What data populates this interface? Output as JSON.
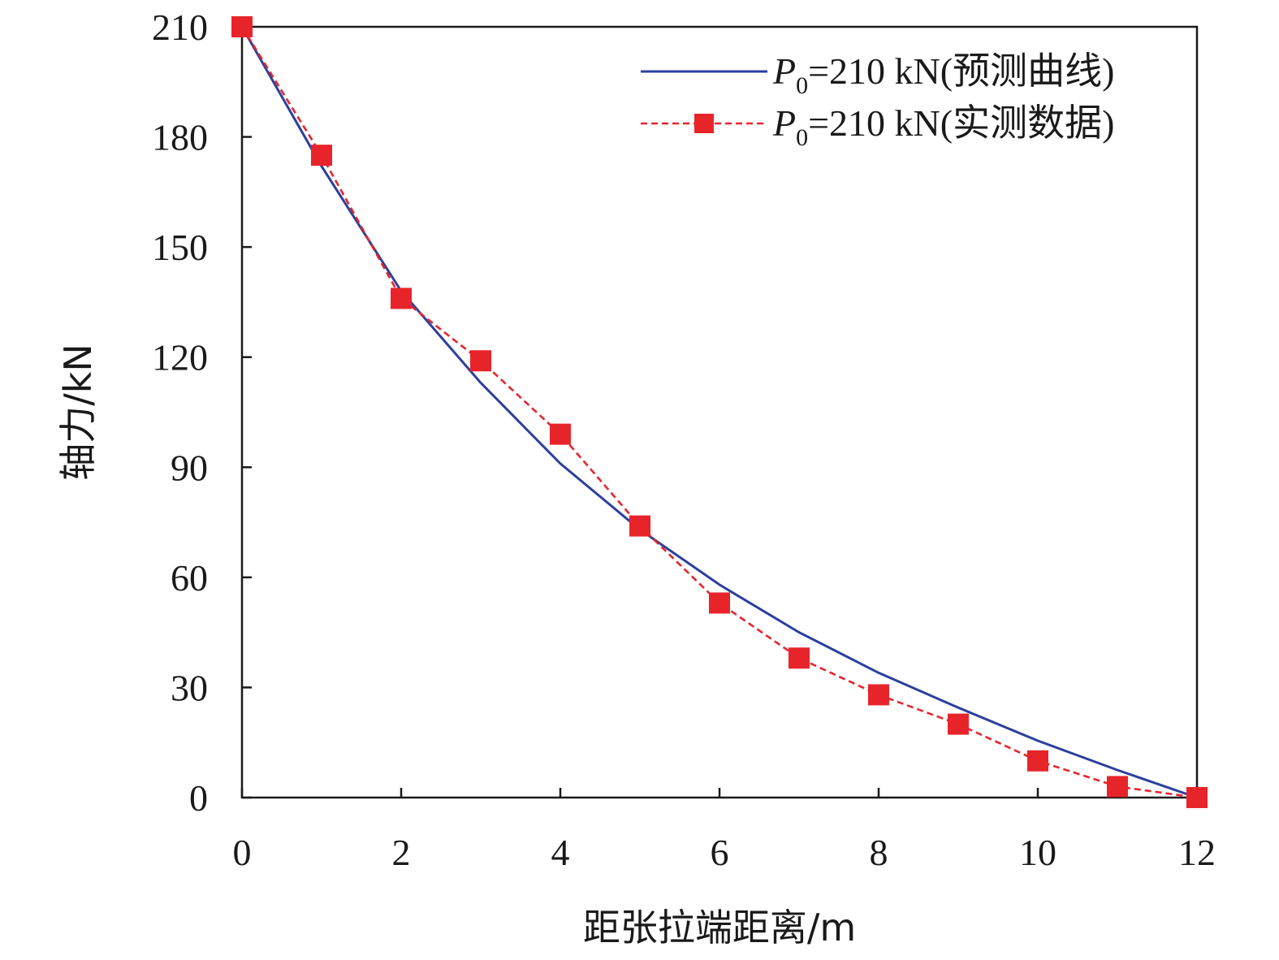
{
  "chart_data": {
    "type": "line",
    "xlabel": "距张拉端距离/m",
    "ylabel": "轴力/kN",
    "xlim": [
      0,
      12
    ],
    "ylim": [
      0,
      210
    ],
    "x_ticks": [
      "0",
      "2",
      "4",
      "6",
      "8",
      "10",
      "12"
    ],
    "y_ticks": [
      "0",
      "30",
      "60",
      "90",
      "120",
      "150",
      "180",
      "210"
    ],
    "grid": false,
    "legend_position": "top-right",
    "series": [
      {
        "name": "P0=210 kN(预测曲线)",
        "legend": {
          "italic": "P",
          "sub": "0",
          "rest": "=210 kN(预测曲线)"
        },
        "style": "solid",
        "color": "#2b3f9e",
        "x": [
          0,
          1,
          2,
          3,
          4,
          5,
          6,
          7,
          8,
          9,
          10,
          11,
          12
        ],
        "y": [
          210,
          172,
          138,
          113,
          91,
          73,
          58,
          45,
          34,
          24.5,
          15.5,
          7.5,
          0
        ]
      },
      {
        "name": "P0=210 kN(实测数据)",
        "legend": {
          "italic": "P",
          "sub": "0",
          "rest": "=210 kN(实测数据)"
        },
        "style": "dashed",
        "marker": "square",
        "color": "#e8242b",
        "x": [
          0,
          1,
          2,
          3,
          4,
          5,
          6,
          7,
          8,
          9,
          10,
          11,
          12
        ],
        "y": [
          210,
          175,
          136,
          119,
          99,
          74,
          53,
          38,
          28,
          20,
          10,
          3,
          0
        ]
      }
    ]
  }
}
